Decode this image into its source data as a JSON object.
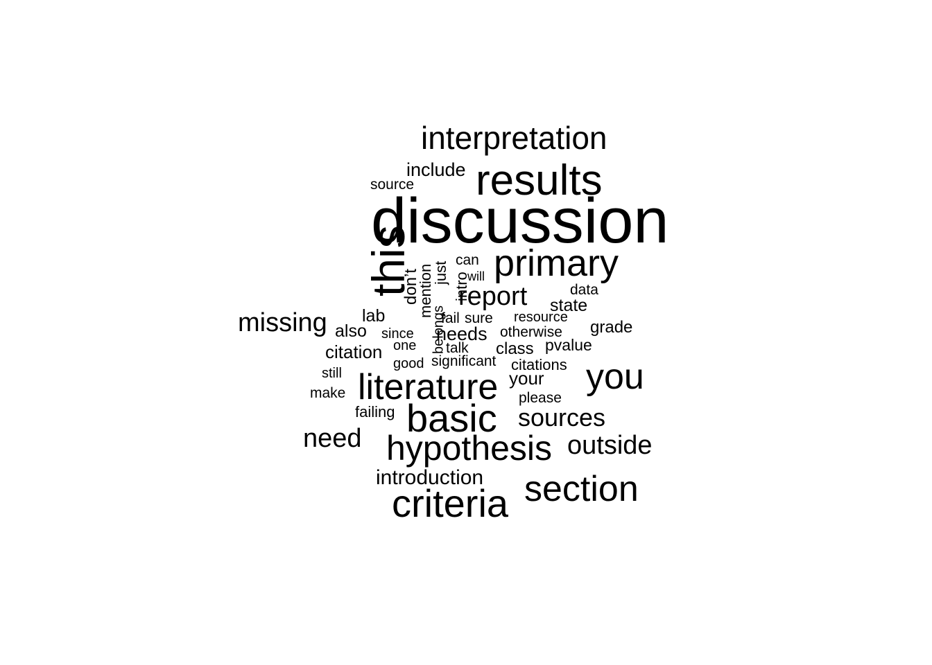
{
  "word_cloud": {
    "color": "#000000",
    "words": [
      {
        "id": "discussion",
        "text": "discussion"
      },
      {
        "id": "this",
        "text": "this"
      },
      {
        "id": "results",
        "text": "results"
      },
      {
        "id": "interpretation",
        "text": "interpretation"
      },
      {
        "id": "primary",
        "text": "primary"
      },
      {
        "id": "basic",
        "text": "basic"
      },
      {
        "id": "literature",
        "text": "literature"
      },
      {
        "id": "criteria",
        "text": "criteria"
      },
      {
        "id": "hypothesis",
        "text": "hypothesis"
      },
      {
        "id": "section",
        "text": "section"
      },
      {
        "id": "you",
        "text": "you"
      },
      {
        "id": "report",
        "text": "report"
      },
      {
        "id": "missing",
        "text": "missing"
      },
      {
        "id": "need",
        "text": "need"
      },
      {
        "id": "sources",
        "text": "sources"
      },
      {
        "id": "outside",
        "text": "outside"
      },
      {
        "id": "introduction",
        "text": "introduction"
      },
      {
        "id": "include",
        "text": "include"
      },
      {
        "id": "source",
        "text": "source"
      },
      {
        "id": "can",
        "text": "can"
      },
      {
        "id": "will",
        "text": "will"
      },
      {
        "id": "data",
        "text": "data"
      },
      {
        "id": "state",
        "text": "state"
      },
      {
        "id": "lab",
        "text": "lab"
      },
      {
        "id": "also",
        "text": "also"
      },
      {
        "id": "since",
        "text": "since"
      },
      {
        "id": "fail",
        "text": "fail"
      },
      {
        "id": "sure",
        "text": "sure"
      },
      {
        "id": "resource",
        "text": "resource"
      },
      {
        "id": "otherwise",
        "text": "otherwise"
      },
      {
        "id": "grade",
        "text": "grade"
      },
      {
        "id": "needs",
        "text": "needs"
      },
      {
        "id": "citation",
        "text": "citation"
      },
      {
        "id": "one",
        "text": "one"
      },
      {
        "id": "talk",
        "text": "talk"
      },
      {
        "id": "class",
        "text": "class"
      },
      {
        "id": "pvalue",
        "text": "pvalue"
      },
      {
        "id": "good",
        "text": "good"
      },
      {
        "id": "significant",
        "text": "significant"
      },
      {
        "id": "citations",
        "text": "citations"
      },
      {
        "id": "still",
        "text": "still"
      },
      {
        "id": "your",
        "text": "your"
      },
      {
        "id": "make",
        "text": "make"
      },
      {
        "id": "please",
        "text": "please"
      },
      {
        "id": "failing",
        "text": "failing"
      },
      {
        "id": "dont",
        "text": "don’t"
      },
      {
        "id": "mention",
        "text": "mention"
      },
      {
        "id": "just",
        "text": "just"
      },
      {
        "id": "intro",
        "text": "intro"
      },
      {
        "id": "belongs",
        "text": "belongs"
      }
    ]
  }
}
